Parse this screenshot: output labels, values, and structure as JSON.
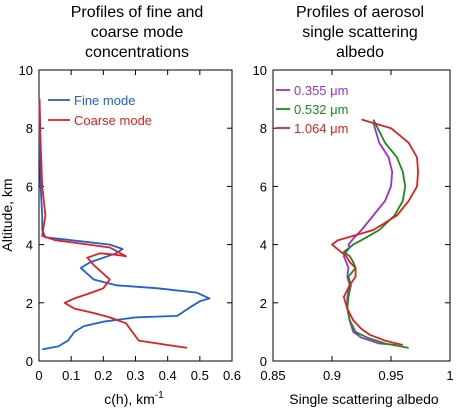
{
  "chart_data": [
    {
      "type": "line",
      "title": "Profiles of fine and coarse mode concentrations",
      "title_lines": [
        "Profiles of fine and",
        "coarse mode",
        "concentrations"
      ],
      "xlabel": "c(h), km",
      "xlabel_sup": "-1",
      "ylabel": "Altitude, km",
      "xlim": [
        0,
        0.6
      ],
      "ylim": [
        0,
        10
      ],
      "xticks": [
        0,
        0.1,
        0.2,
        0.3,
        0.4,
        0.5,
        0.6
      ],
      "xtick_labels": [
        "0",
        "0.1",
        "0.2",
        "0.3",
        "0.4",
        "0.5",
        "0.6"
      ],
      "yticks": [
        0,
        2,
        4,
        6,
        8,
        10
      ],
      "ytick_labels": [
        "0",
        "2",
        "4",
        "6",
        "8",
        "10"
      ],
      "grid": false,
      "legend_position": "top-left",
      "series": [
        {
          "name": "Fine mode",
          "color": "#1f5fd6",
          "x": [
            0.01,
            0.06,
            0.09,
            0.11,
            0.14,
            0.2,
            0.3,
            0.43,
            0.45,
            0.47,
            0.5,
            0.53,
            0.49,
            0.37,
            0.24,
            0.17,
            0.13,
            0.16,
            0.2,
            0.24,
            0.26,
            0.22,
            0.1,
            0.02,
            0.01,
            0.01,
            0.005,
            0.003,
            0.002,
            0.001
          ],
          "y": [
            0.4,
            0.5,
            0.7,
            1.0,
            1.2,
            1.35,
            1.5,
            1.55,
            1.7,
            1.85,
            2.05,
            2.15,
            2.35,
            2.5,
            2.6,
            2.8,
            3.2,
            3.4,
            3.55,
            3.7,
            3.85,
            4.0,
            4.15,
            4.25,
            4.5,
            5.0,
            6.0,
            7.0,
            8.0,
            9.0
          ]
        },
        {
          "name": "Coarse mode",
          "color": "#e02020",
          "x": [
            0.46,
            0.4,
            0.31,
            0.29,
            0.27,
            0.22,
            0.17,
            0.11,
            0.08,
            0.11,
            0.15,
            0.2,
            0.22,
            0.19,
            0.17,
            0.15,
            0.19,
            0.24,
            0.27,
            0.22,
            0.12,
            0.05,
            0.01,
            0.02,
            0.01,
            0.005,
            0.002
          ],
          "y": [
            0.45,
            0.55,
            0.7,
            1.0,
            1.3,
            1.5,
            1.65,
            1.8,
            2.0,
            2.15,
            2.3,
            2.5,
            2.8,
            3.1,
            3.3,
            3.55,
            3.7,
            3.65,
            3.6,
            3.9,
            4.05,
            4.15,
            4.3,
            5.0,
            6.0,
            7.5,
            9.0
          ]
        }
      ]
    },
    {
      "type": "line",
      "title": "Profiles of aerosol single scattering albedo",
      "title_lines": [
        "Profiles of aerosol",
        "single scattering",
        "albedo"
      ],
      "xlabel": "Single scattering albedo",
      "ylabel": "",
      "xlim": [
        0.85,
        1.0
      ],
      "ylim": [
        0,
        10
      ],
      "xticks": [
        0.85,
        0.9,
        0.95,
        1.0
      ],
      "xtick_labels": [
        "0.85",
        "0.9",
        "0.95",
        "1"
      ],
      "yticks": [
        0,
        2,
        4,
        6,
        8,
        10
      ],
      "ytick_labels": [
        "0",
        "2",
        "4",
        "6",
        "8",
        "10"
      ],
      "grid": false,
      "legend_position": "top-left",
      "series": [
        {
          "name": "0.355 μm",
          "color": "#9b30d0",
          "x": [
            0.955,
            0.94,
            0.925,
            0.918,
            0.915,
            0.913,
            0.913,
            0.915,
            0.913,
            0.914,
            0.912,
            0.91,
            0.912,
            0.915,
            0.914,
            0.918,
            0.925,
            0.935,
            0.945,
            0.95,
            0.951,
            0.948,
            0.94,
            0.935
          ],
          "y": [
            0.55,
            0.6,
            0.8,
            1.0,
            1.4,
            1.8,
            2.2,
            2.6,
            2.9,
            3.2,
            3.4,
            3.6,
            3.75,
            3.9,
            4.0,
            4.2,
            4.5,
            5.0,
            5.5,
            6.0,
            6.5,
            7.0,
            7.5,
            8.2
          ]
        },
        {
          "name": "0.532 μm",
          "color": "#1a8a1a",
          "x": [
            0.965,
            0.945,
            0.93,
            0.92,
            0.915,
            0.913,
            0.914,
            0.916,
            0.914,
            0.92,
            0.918,
            0.915,
            0.91,
            0.915,
            0.918,
            0.927,
            0.94,
            0.953,
            0.96,
            0.962,
            0.96,
            0.955,
            0.945,
            0.935
          ],
          "y": [
            0.45,
            0.6,
            0.8,
            1.0,
            1.4,
            1.8,
            2.2,
            2.6,
            2.9,
            3.2,
            3.4,
            3.6,
            3.75,
            3.9,
            4.0,
            4.2,
            4.5,
            5.0,
            5.5,
            6.0,
            6.5,
            7.0,
            7.5,
            8.3
          ]
        },
        {
          "name": "1.064 μm",
          "color": "#e02020",
          "x": [
            0.96,
            0.945,
            0.932,
            0.925,
            0.918,
            0.913,
            0.91,
            0.915,
            0.92,
            0.92,
            0.915,
            0.912,
            0.9,
            0.905,
            0.918,
            0.935,
            0.955,
            0.965,
            0.972,
            0.973,
            0.972,
            0.965,
            0.95,
            0.925
          ],
          "y": [
            0.55,
            0.7,
            0.9,
            1.1,
            1.4,
            1.8,
            2.2,
            2.6,
            2.9,
            3.2,
            3.4,
            3.6,
            4.0,
            4.15,
            4.3,
            4.5,
            5.0,
            5.5,
            6.0,
            6.5,
            7.0,
            7.5,
            8.0,
            8.3
          ]
        }
      ]
    }
  ]
}
